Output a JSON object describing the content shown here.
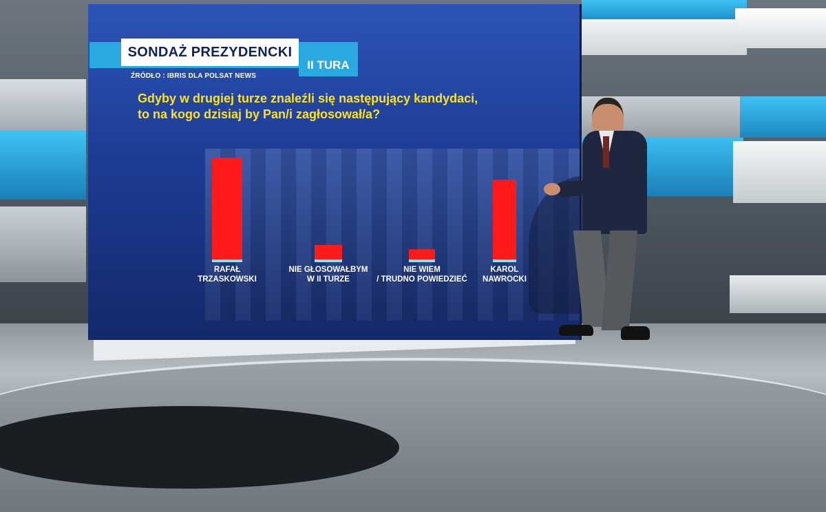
{
  "broadcast": {
    "title": "SONDAŻ PREZYDENCKI",
    "round": "II TURA",
    "source": "ŹRÓDŁO : IBRIS DLA POLSAT NEWS",
    "question_line1": "Gdyby w drugiej turze znaleźli się następujący kandydaci,",
    "question_line2": "to na kogo dzisiaj by Pan/i zagłosował/a?"
  },
  "chart_data": {
    "type": "bar",
    "categories": [
      [
        "RAFAŁ",
        "TRZASKOWSKI"
      ],
      [
        "NIE GŁOSOWAŁBYM",
        "W II TURZE"
      ],
      [
        "NIE WIEM",
        "/ TRUDNO POWIEDZIEĆ"
      ],
      [
        "KAROL",
        "NAWROCKI"
      ]
    ],
    "values": [
      47,
      7,
      5,
      37
    ],
    "ylim": [
      0,
      50
    ],
    "grid": false,
    "legend": "none",
    "bar_color": "#ff1a1a",
    "bar_cap_color": "#7fe8ff"
  }
}
